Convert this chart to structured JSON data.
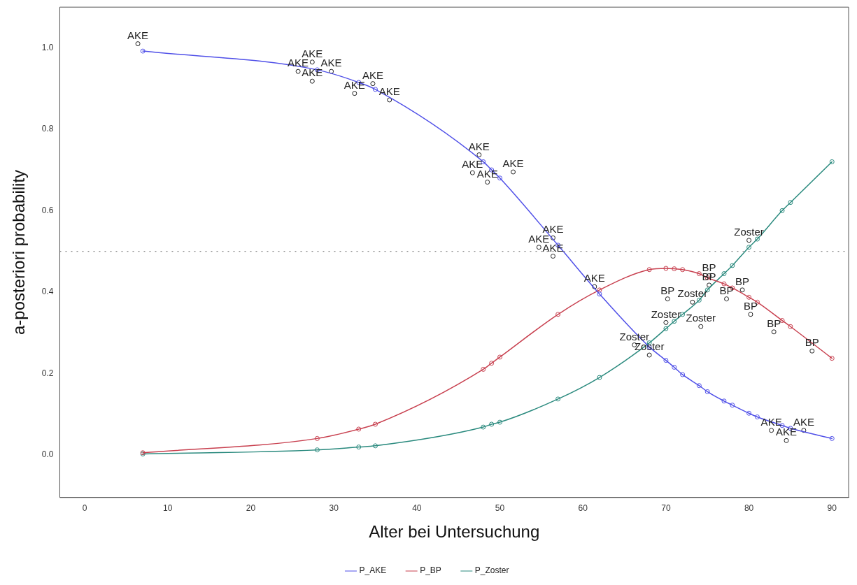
{
  "chart_data": {
    "type": "line",
    "xlabel": "Alter bei Untersuchung",
    "ylabel": "a-posteriori probability",
    "x": [
      7,
      28,
      33,
      35,
      48,
      49,
      50,
      57,
      62,
      68,
      70,
      71,
      72,
      74,
      75,
      77,
      78,
      80,
      81,
      84,
      85,
      90
    ],
    "series": [
      {
        "name": "P_AKE",
        "color": "#5050e8",
        "values": [
          0.992,
          0.946,
          0.915,
          0.898,
          0.72,
          0.7,
          0.68,
          0.515,
          0.395,
          0.265,
          0.232,
          0.215,
          0.197,
          0.17,
          0.155,
          0.132,
          0.122,
          0.102,
          0.093,
          0.072,
          0.065,
          0.04
        ]
      },
      {
        "name": "P_BP",
        "color": "#c8404f",
        "values": [
          0.005,
          0.04,
          0.063,
          0.075,
          0.21,
          0.225,
          0.24,
          0.345,
          0.405,
          0.455,
          0.458,
          0.457,
          0.455,
          0.445,
          0.435,
          0.42,
          0.41,
          0.387,
          0.375,
          0.33,
          0.315,
          0.237
        ]
      },
      {
        "name": "P_Zoster",
        "color": "#2a8a7e",
        "values": [
          0.002,
          0.012,
          0.019,
          0.022,
          0.068,
          0.075,
          0.08,
          0.137,
          0.19,
          0.275,
          0.31,
          0.328,
          0.345,
          0.38,
          0.405,
          0.445,
          0.465,
          0.51,
          0.53,
          0.6,
          0.62,
          0.72
        ]
      },
      {
        "type": "scatter",
        "marker": "circle",
        "color": "#222222",
        "x": [
          6.4,
          27.4,
          25.7,
          29.7,
          27.4,
          34.7,
          32.5,
          36.7,
          47.5,
          46.7,
          51.6,
          48.5,
          56.4,
          54.7,
          56.4,
          61.4,
          82.7,
          86.6,
          84.5,
          70.2,
          75.2,
          75.2,
          77.3,
          79.2,
          80.2,
          83.0,
          87.6,
          80.0,
          73.2,
          70.0,
          74.2,
          66.2,
          68.0
        ],
        "values": [
          1.01,
          0.965,
          0.942,
          0.942,
          0.918,
          0.912,
          0.888,
          0.872,
          0.737,
          0.693,
          0.695,
          0.67,
          0.533,
          0.51,
          0.488,
          0.413,
          0.06,
          0.06,
          0.035,
          0.383,
          0.44,
          0.417,
          0.383,
          0.405,
          0.345,
          0.302,
          0.255,
          0.527,
          0.375,
          0.325,
          0.315,
          0.27,
          0.245
        ],
        "value_labels": [
          "AKE",
          "AKE",
          "AKE",
          "AKE",
          "AKE",
          "AKE",
          "AKE",
          "AKE",
          "AKE",
          "AKE",
          "AKE",
          "AKE",
          "AKE",
          "AKE",
          "AKE",
          "AKE",
          "AKE",
          "AKE",
          "AKE",
          "BP",
          "BP",
          "BP",
          "BP",
          "BP",
          "BP",
          "BP",
          "BP",
          "Zoster",
          "Zoster",
          "Zoster",
          "Zoster",
          "Zoster",
          "Zoster"
        ]
      }
    ],
    "xlim": [
      -3,
      92
    ],
    "xticks": [
      0,
      10,
      20,
      30,
      40,
      50,
      60,
      70,
      80,
      90
    ],
    "ylim": [
      -0.105,
      1.1
    ],
    "yticks": [
      {
        "value": 0,
        "label": "0.0"
      },
      {
        "value": 0.2,
        "label": "0.2"
      },
      {
        "value": 0.4,
        "label": "0.4"
      },
      {
        "value": 0.6,
        "label": "0.6"
      },
      {
        "value": 0.8,
        "label": "0.8"
      },
      {
        "value": 1,
        "label": "1.0"
      }
    ],
    "ref_lines": [
      {
        "axis": "y",
        "value": 0.5,
        "color": "#888888",
        "line_style": "dotted"
      }
    ],
    "grid": false,
    "legend": "bottom",
    "marker": "circle",
    "line_style": "solid"
  }
}
